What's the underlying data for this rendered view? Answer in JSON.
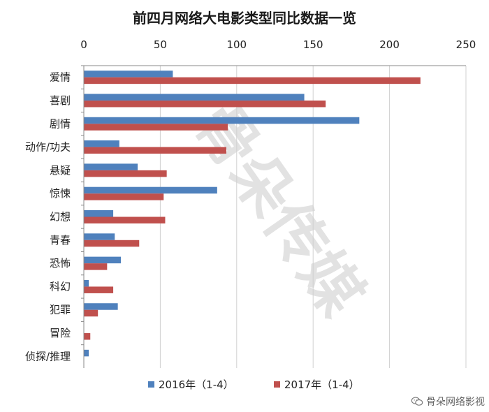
{
  "chart_data": {
    "type": "bar",
    "orientation": "horizontal",
    "title": "前四月网络大电影类型同比数据一览",
    "categories": [
      "爱情",
      "喜剧",
      "剧情",
      "动作/功夫",
      "悬疑",
      "惊悚",
      "幻想",
      "青春",
      "恐怖",
      "科幻",
      "犯罪",
      "冒险",
      "侦探/推理"
    ],
    "series": [
      {
        "name": "2016年（1-4）",
        "color": "#4f81bd",
        "values": [
          58,
          144,
          180,
          23,
          35,
          87,
          19,
          20,
          24,
          3,
          22,
          0,
          3
        ]
      },
      {
        "name": "2017年（1-4）",
        "color": "#c0504d",
        "values": [
          220,
          158,
          94,
          93,
          54,
          52,
          53,
          36,
          15,
          19,
          9,
          4,
          0
        ]
      }
    ],
    "xlim": [
      0,
      250
    ],
    "xticks": [
      0,
      50,
      100,
      150,
      200,
      250
    ],
    "xaxis_position": "top",
    "grid": true,
    "legend_position": "bottom"
  },
  "watermark": "骨朵传媒",
  "brand": {
    "label": "骨朵网络影视",
    "icon": "wechat-icon"
  }
}
